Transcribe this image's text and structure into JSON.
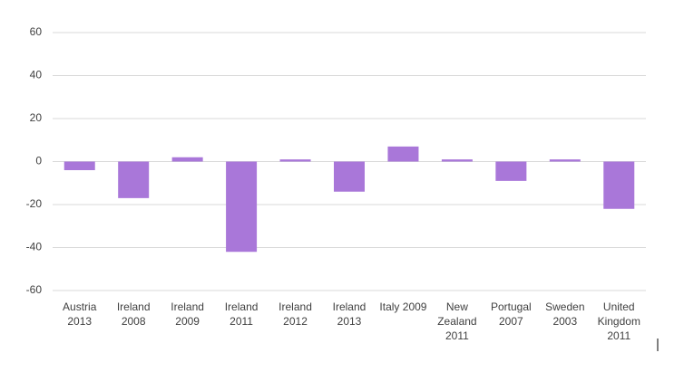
{
  "chart_data": {
    "type": "bar",
    "categories": [
      "Austria 2013",
      "Ireland 2008",
      "Ireland 2009",
      "Ireland 2011",
      "Ireland 2012",
      "Ireland 2013",
      "Italy 2009",
      "New Zealand 2011",
      "Portugal 2007",
      "Sweden 2003",
      "United Kingdom 2011"
    ],
    "values": [
      -4,
      -17,
      2,
      -42,
      1,
      -14,
      7,
      1,
      -9,
      1,
      -22
    ],
    "color": "#a977d9",
    "ylim": [
      -60,
      60
    ],
    "yticks": [
      -60,
      -40,
      -20,
      0,
      20,
      40,
      60
    ],
    "grid": true
  }
}
